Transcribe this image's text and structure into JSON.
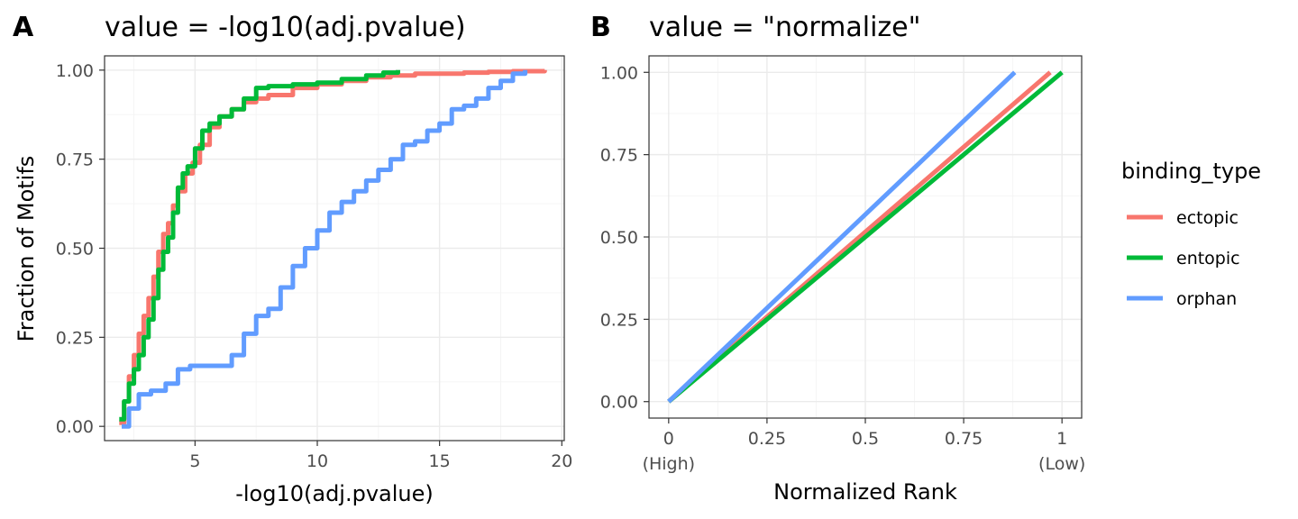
{
  "chart_data": [
    {
      "panel": "A",
      "title": "value = -log10(adj.pvalue)",
      "type": "line",
      "xlabel": "-log10(adj.pvalue)",
      "ylabel": "Fraction of Motifs",
      "xlim": [
        1.3,
        20.1
      ],
      "ylim": [
        -0.04,
        1.04
      ],
      "xticks": [
        5,
        10,
        15,
        20
      ],
      "xtick_labels": [
        "5",
        "10",
        "15",
        "20"
      ],
      "yticks": [
        0,
        0.25,
        0.5,
        0.75,
        1
      ],
      "ytick_labels": [
        "0.00",
        "0.25",
        "0.50",
        "0.75",
        "1.00"
      ],
      "grid": true,
      "series": [
        {
          "name": "ectopic",
          "x": [
            1.9,
            2.1,
            2.3,
            2.5,
            2.7,
            2.9,
            3.1,
            3.3,
            3.5,
            3.7,
            3.9,
            4.1,
            4.3,
            4.6,
            4.9,
            5.2,
            5.6,
            6.0,
            6.5,
            7.0,
            7.5,
            8.0,
            9.0,
            10.0,
            11.0,
            12.0,
            13.0,
            14.0,
            15.0,
            16.0,
            17.0,
            18.0,
            19.3
          ],
          "y": [
            0.01,
            0.07,
            0.14,
            0.2,
            0.26,
            0.31,
            0.36,
            0.42,
            0.49,
            0.54,
            0.57,
            0.62,
            0.66,
            0.71,
            0.74,
            0.79,
            0.84,
            0.87,
            0.89,
            0.91,
            0.92,
            0.93,
            0.95,
            0.96,
            0.97,
            0.98,
            0.985,
            0.99,
            0.99,
            0.993,
            0.995,
            0.997,
            1.0
          ]
        },
        {
          "name": "entopic",
          "x": [
            1.9,
            2.1,
            2.3,
            2.5,
            2.7,
            2.9,
            3.1,
            3.3,
            3.5,
            3.7,
            3.9,
            4.1,
            4.3,
            4.5,
            4.7,
            5.0,
            5.3,
            5.6,
            6.0,
            6.5,
            7.0,
            7.5,
            8.0,
            9.0,
            10.0,
            11.0,
            12.0,
            12.7,
            13.3
          ],
          "y": [
            0.02,
            0.07,
            0.12,
            0.16,
            0.2,
            0.25,
            0.3,
            0.36,
            0.44,
            0.49,
            0.53,
            0.6,
            0.67,
            0.71,
            0.73,
            0.78,
            0.83,
            0.85,
            0.87,
            0.89,
            0.92,
            0.95,
            0.955,
            0.96,
            0.965,
            0.975,
            0.985,
            0.993,
            1.0
          ]
        },
        {
          "name": "orphan",
          "x": [
            2.0,
            2.3,
            2.7,
            3.2,
            3.8,
            4.3,
            4.8,
            5.3,
            6.0,
            6.5,
            7.0,
            7.5,
            8.0,
            8.5,
            9.0,
            9.5,
            10.0,
            10.5,
            11.0,
            11.5,
            12.0,
            12.5,
            13.0,
            13.5,
            14.0,
            14.5,
            15.0,
            15.5,
            16.0,
            16.5,
            17.0,
            17.5,
            18.0,
            18.5
          ],
          "y": [
            0.0,
            0.05,
            0.09,
            0.1,
            0.12,
            0.16,
            0.17,
            0.17,
            0.17,
            0.2,
            0.26,
            0.31,
            0.33,
            0.39,
            0.45,
            0.5,
            0.55,
            0.6,
            0.63,
            0.66,
            0.69,
            0.72,
            0.75,
            0.79,
            0.8,
            0.83,
            0.85,
            0.89,
            0.9,
            0.92,
            0.95,
            0.97,
            0.99,
            1.0
          ]
        }
      ]
    },
    {
      "panel": "B",
      "title": "value = \"normalize\"",
      "type": "line",
      "xlabel": "Normalized Rank",
      "ylabel": "",
      "xlim": [
        -0.05,
        1.05
      ],
      "ylim": [
        -0.05,
        1.05
      ],
      "xticks": [
        0,
        0.25,
        0.5,
        0.75,
        1
      ],
      "xtick_labels": [
        "0",
        "0.25",
        "0.5",
        "0.75",
        "1"
      ],
      "xtick_sublabels": [
        "(High)",
        "",
        "",
        "",
        "(Low)"
      ],
      "yticks": [
        0,
        0.25,
        0.5,
        0.75,
        1
      ],
      "ytick_labels": [
        "0.00",
        "0.25",
        "0.50",
        "0.75",
        "1.00"
      ],
      "grid": true,
      "series": [
        {
          "name": "ectopic",
          "x": [
            0.0,
            0.97
          ],
          "y": [
            0.0,
            1.0
          ]
        },
        {
          "name": "entopic",
          "x": [
            0.0,
            1.0
          ],
          "y": [
            0.0,
            1.0
          ]
        },
        {
          "name": "orphan",
          "x": [
            0.0,
            0.88
          ],
          "y": [
            0.0,
            1.0
          ]
        }
      ]
    }
  ],
  "legend": {
    "title": "binding_type",
    "placement": "right",
    "entries": [
      "ectopic",
      "entopic",
      "orphan"
    ]
  },
  "colors": {
    "ectopic": "#F8766D",
    "entopic": "#00BA38",
    "orphan": "#619CFF"
  }
}
